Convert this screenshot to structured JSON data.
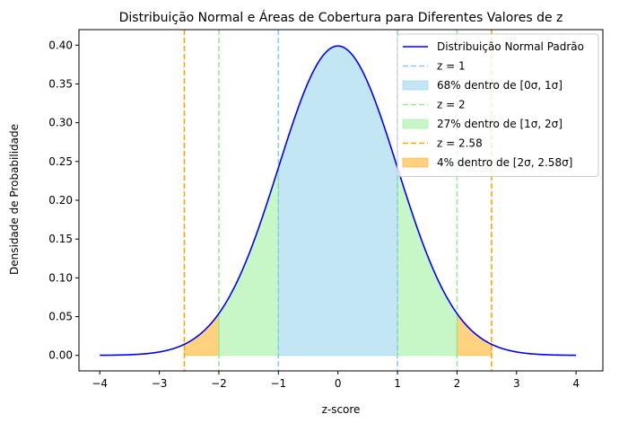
{
  "chart_data": {
    "type": "area",
    "title": "Distribuição Normal e Áreas de Cobertura para Diferentes Valores de z",
    "xlabel": "z-score",
    "ylabel": "Densidade de Probabilidade",
    "xlim": [
      -4.35,
      4.45
    ],
    "ylim": [
      -0.02,
      0.42
    ],
    "xticks": [
      -4,
      -3,
      -2,
      -1,
      0,
      1,
      2,
      3,
      4
    ],
    "xtick_labels": [
      "−4",
      "−3",
      "−2",
      "−1",
      "0",
      "1",
      "2",
      "3",
      "4"
    ],
    "yticks": [
      0.0,
      0.05,
      0.1,
      0.15,
      0.2,
      0.25,
      0.3,
      0.35,
      0.4
    ],
    "ytick_labels": [
      "0.00",
      "0.05",
      "0.10",
      "0.15",
      "0.20",
      "0.25",
      "0.30",
      "0.35",
      "0.40"
    ],
    "grid": false,
    "legend_position": "top-right",
    "curve": {
      "name": "Distribuição Normal Padrão",
      "color": "#0000ff",
      "x_range": [
        -4,
        4
      ],
      "function": "standard normal pdf"
    },
    "vlines": [
      {
        "name": "z = 1",
        "x": [
          -1,
          1
        ],
        "color": "#87ceeb"
      },
      {
        "name": "z = 2",
        "x": [
          -2,
          2
        ],
        "color": "#90ee90"
      },
      {
        "name": "z = 2.58",
        "x": [
          -2.58,
          2.58
        ],
        "color": "#ffa500"
      }
    ],
    "areas": [
      {
        "name": "68% dentro de [0σ, 1σ]",
        "from": -1,
        "to": 1,
        "color": "#87ceeb",
        "opacity": 0.5
      },
      {
        "name": "27% dentro de [1σ, 2σ]",
        "ranges": [
          [
            -2,
            -1
          ],
          [
            1,
            2
          ]
        ],
        "color": "#90ee90",
        "opacity": 0.5
      },
      {
        "name": "4% dentro de [2σ, 2.58σ]",
        "ranges": [
          [
            -2.58,
            -2
          ],
          [
            2,
            2.58
          ]
        ],
        "color": "#ffa500",
        "opacity": 0.5
      }
    ],
    "legend": [
      {
        "label": "Distribuição Normal Padrão",
        "kind": "line",
        "color": "#0000ff"
      },
      {
        "label": "z = 1",
        "kind": "dashed",
        "color": "#87ceeb"
      },
      {
        "label": "68% dentro de [0σ, 1σ]",
        "kind": "patch",
        "color": "#87ceeb"
      },
      {
        "label": "z = 2",
        "kind": "dashed",
        "color": "#90ee90"
      },
      {
        "label": "27% dentro de [1σ, 2σ]",
        "kind": "patch",
        "color": "#90ee90"
      },
      {
        "label": "z = 2.58",
        "kind": "dashed",
        "color": "#ffa500"
      },
      {
        "label": "4% dentro de [2σ, 2.58σ]",
        "kind": "patch",
        "color": "#ffa500"
      }
    ]
  }
}
